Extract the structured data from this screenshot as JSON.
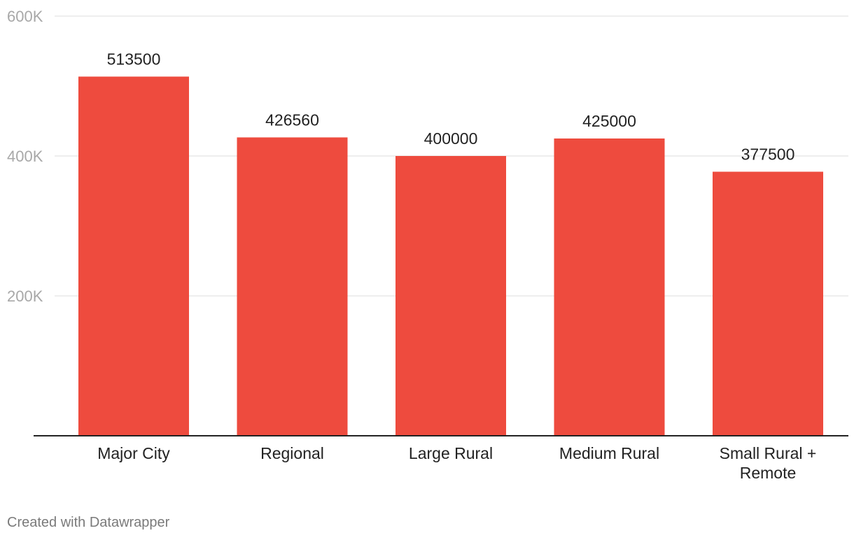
{
  "chart_data": {
    "type": "bar",
    "categories": [
      "Major City",
      "Regional",
      "Large Rural",
      "Medium Rural",
      "Small Rural + Remote"
    ],
    "values": [
      513500,
      426560,
      400000,
      425000,
      377500
    ],
    "value_labels": [
      "513500",
      "426560",
      "400000",
      "425000",
      "377500"
    ],
    "ylim": [
      0,
      600000
    ],
    "yticks": [
      200000,
      400000,
      600000
    ],
    "ytick_labels": [
      "200K",
      "400K",
      "600K"
    ],
    "grid": true,
    "bar_color": "#ee4b3e"
  },
  "footer": {
    "credit": "Created with Datawrapper"
  }
}
